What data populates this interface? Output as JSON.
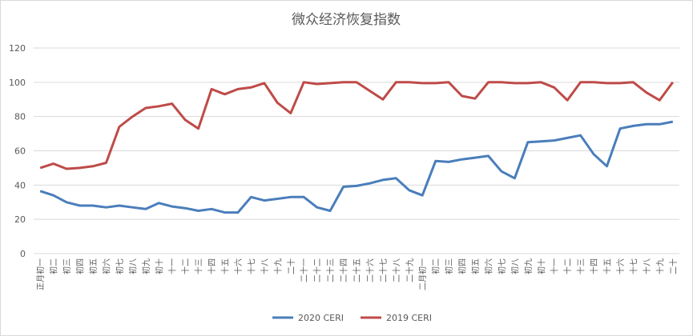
{
  "chart_data": {
    "type": "line",
    "title": "微众经济恢复指数",
    "categories": [
      "正月初一",
      "初二",
      "初三",
      "初四",
      "初五",
      "初六",
      "初七",
      "初八",
      "初九",
      "初十",
      "十一",
      "十二",
      "十三",
      "十四",
      "十五",
      "十六",
      "十七",
      "十八",
      "十九",
      "二十",
      "二十一",
      "二十二",
      "二十三",
      "二十四",
      "二十五",
      "二十六",
      "二十七",
      "二十八",
      "二十九",
      "二月初一",
      "初二",
      "初三",
      "初四",
      "初五",
      "初六",
      "初七",
      "初八",
      "初九",
      "初十",
      "十一",
      "十二",
      "十三",
      "十四",
      "十五",
      "十六",
      "十七",
      "十八",
      "十九",
      "二十"
    ],
    "series": [
      {
        "name": "2020 CERI",
        "color": "#4a7ebb",
        "values": [
          36.5,
          34,
          30,
          28,
          28,
          27,
          28,
          27,
          26,
          29.5,
          27.5,
          26.5,
          25,
          26,
          24,
          24,
          33,
          31,
          32,
          33,
          33,
          27,
          25,
          39,
          39.5,
          41,
          43,
          44,
          37,
          34,
          54,
          53.5,
          55,
          56,
          57,
          48,
          44,
          65,
          65.5,
          66,
          67.5,
          69,
          58,
          51,
          73,
          74.5,
          75.5,
          75.5,
          77
        ]
      },
      {
        "name": "2019 CERI",
        "color": "#be4b48",
        "values": [
          50,
          52.5,
          49.5,
          50,
          51,
          53,
          74,
          80,
          85,
          86,
          87.5,
          78,
          73,
          96,
          93,
          96,
          97,
          99.5,
          88,
          82,
          100,
          99,
          99.5,
          100,
          100,
          95,
          90,
          100,
          100,
          99.5,
          99.5,
          100,
          92,
          90.5,
          100,
          100,
          99.5,
          99.5,
          100,
          97,
          89.5,
          100,
          100,
          99.5,
          99.5,
          100,
          94,
          89.5,
          100
        ]
      }
    ],
    "ylim": [
      0,
      120
    ],
    "yticks": [
      0,
      20,
      40,
      60,
      80,
      100,
      120
    ],
    "grid": true,
    "legend": "bottom"
  }
}
